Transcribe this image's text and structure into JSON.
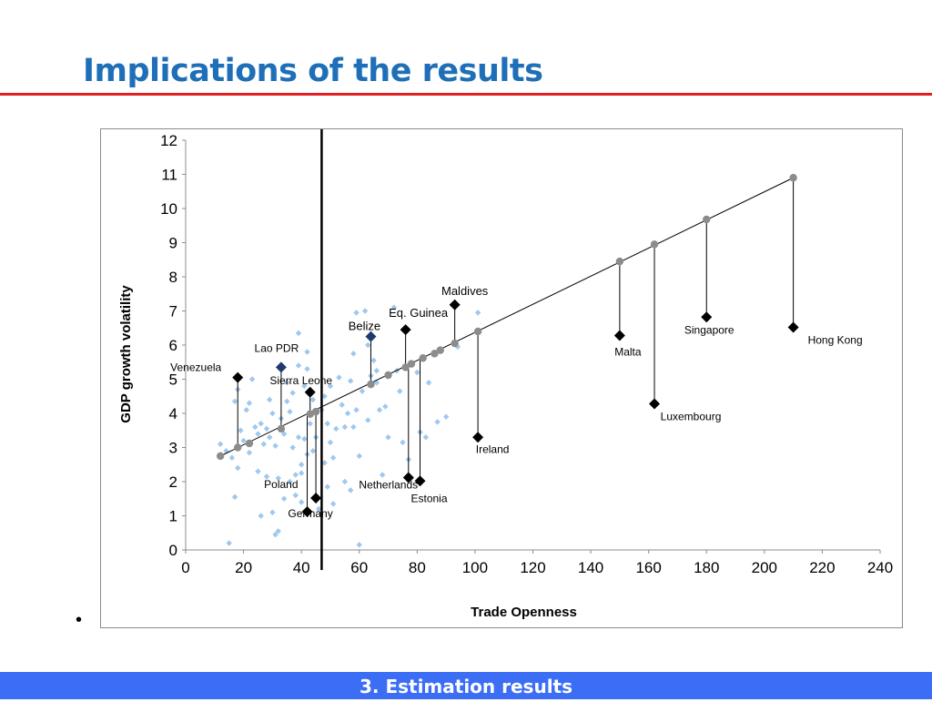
{
  "slide": {
    "title": "Implications of the results",
    "footer": "3. Estimation results",
    "bullet": "•"
  },
  "chart_data": {
    "type": "scatter",
    "title": "",
    "xlabel": "Trade Openness",
    "ylabel": "GDP growth volatility",
    "xlim": [
      0,
      240
    ],
    "ylim": [
      0,
      12
    ],
    "xticks": [
      0,
      20,
      40,
      60,
      80,
      100,
      120,
      140,
      160,
      180,
      200,
      220,
      240
    ],
    "yticks": [
      0,
      1,
      2,
      3,
      4,
      5,
      6,
      7,
      8,
      9,
      10,
      11,
      12
    ],
    "grid": false,
    "legend": "none",
    "threshold_x": 47,
    "colors": {
      "cloud": "#9fc8ee",
      "fitted": "#8c8c8c",
      "highlight": "#000000",
      "highlight_blue": "#1f3a6e"
    },
    "fitted_line": {
      "x": [
        12,
        210
      ],
      "y": [
        2.75,
        10.9
      ]
    },
    "fitted_points": [
      {
        "x": 12,
        "y": 2.75
      },
      {
        "x": 18,
        "y": 3.0
      },
      {
        "x": 22,
        "y": 3.12
      },
      {
        "x": 33,
        "y": 3.55
      },
      {
        "x": 43,
        "y": 3.98
      },
      {
        "x": 45,
        "y": 4.05
      },
      {
        "x": 64,
        "y": 4.85
      },
      {
        "x": 70,
        "y": 5.12
      },
      {
        "x": 76,
        "y": 5.35
      },
      {
        "x": 78,
        "y": 5.45
      },
      {
        "x": 82,
        "y": 5.62
      },
      {
        "x": 86,
        "y": 5.75
      },
      {
        "x": 88,
        "y": 5.85
      },
      {
        "x": 93,
        "y": 6.05
      },
      {
        "x": 101,
        "y": 6.4
      },
      {
        "x": 150,
        "y": 8.45
      },
      {
        "x": 162,
        "y": 8.95
      },
      {
        "x": 180,
        "y": 9.68
      },
      {
        "x": 210,
        "y": 10.9
      }
    ],
    "cloud_points": [
      {
        "x": 12,
        "y": 3.1
      },
      {
        "x": 14,
        "y": 2.9
      },
      {
        "x": 15,
        "y": 0.2
      },
      {
        "x": 16,
        "y": 2.7
      },
      {
        "x": 17,
        "y": 1.55
      },
      {
        "x": 17,
        "y": 4.35
      },
      {
        "x": 18,
        "y": 4.7
      },
      {
        "x": 18,
        "y": 2.4
      },
      {
        "x": 19,
        "y": 3.5
      },
      {
        "x": 20,
        "y": 3.2
      },
      {
        "x": 21,
        "y": 4.1
      },
      {
        "x": 22,
        "y": 4.3
      },
      {
        "x": 22,
        "y": 2.85
      },
      {
        "x": 23,
        "y": 5.0
      },
      {
        "x": 24,
        "y": 3.6
      },
      {
        "x": 25,
        "y": 2.3
      },
      {
        "x": 25,
        "y": 3.4
      },
      {
        "x": 26,
        "y": 1.0
      },
      {
        "x": 26,
        "y": 3.7
      },
      {
        "x": 27,
        "y": 3.1
      },
      {
        "x": 28,
        "y": 3.55
      },
      {
        "x": 28,
        "y": 2.15
      },
      {
        "x": 29,
        "y": 4.4
      },
      {
        "x": 29,
        "y": 3.3
      },
      {
        "x": 30,
        "y": 4.0
      },
      {
        "x": 30,
        "y": 1.1
      },
      {
        "x": 31,
        "y": 0.45
      },
      {
        "x": 31,
        "y": 3.05
      },
      {
        "x": 32,
        "y": 0.55
      },
      {
        "x": 32,
        "y": 2.1
      },
      {
        "x": 33,
        "y": 3.85
      },
      {
        "x": 34,
        "y": 1.5
      },
      {
        "x": 34,
        "y": 3.4
      },
      {
        "x": 35,
        "y": 4.9
      },
      {
        "x": 35,
        "y": 4.35
      },
      {
        "x": 36,
        "y": 2.0
      },
      {
        "x": 36,
        "y": 4.05
      },
      {
        "x": 37,
        "y": 3.0
      },
      {
        "x": 37,
        "y": 4.6
      },
      {
        "x": 38,
        "y": 1.6
      },
      {
        "x": 38,
        "y": 2.2
      },
      {
        "x": 39,
        "y": 6.35
      },
      {
        "x": 39,
        "y": 5.4
      },
      {
        "x": 39,
        "y": 3.3
      },
      {
        "x": 40,
        "y": 1.4
      },
      {
        "x": 40,
        "y": 2.25
      },
      {
        "x": 40,
        "y": 2.5
      },
      {
        "x": 41,
        "y": 4.8
      },
      {
        "x": 41,
        "y": 3.25
      },
      {
        "x": 42,
        "y": 5.8
      },
      {
        "x": 42,
        "y": 5.3
      },
      {
        "x": 42,
        "y": 2.8
      },
      {
        "x": 43,
        "y": 3.7
      },
      {
        "x": 44,
        "y": 2.9
      },
      {
        "x": 44,
        "y": 4.4
      },
      {
        "x": 45,
        "y": 3.3
      },
      {
        "x": 46,
        "y": 1.2
      },
      {
        "x": 47,
        "y": 4.1
      },
      {
        "x": 48,
        "y": 2.55
      },
      {
        "x": 48,
        "y": 4.5
      },
      {
        "x": 49,
        "y": 3.7
      },
      {
        "x": 49,
        "y": 1.85
      },
      {
        "x": 50,
        "y": 3.15
      },
      {
        "x": 50,
        "y": 4.8
      },
      {
        "x": 51,
        "y": 2.7
      },
      {
        "x": 51,
        "y": 1.35
      },
      {
        "x": 52,
        "y": 3.55
      },
      {
        "x": 53,
        "y": 5.05
      },
      {
        "x": 54,
        "y": 4.25
      },
      {
        "x": 55,
        "y": 2.0
      },
      {
        "x": 55,
        "y": 3.6
      },
      {
        "x": 56,
        "y": 4.0
      },
      {
        "x": 57,
        "y": 4.95
      },
      {
        "x": 57,
        "y": 1.75
      },
      {
        "x": 58,
        "y": 3.6
      },
      {
        "x": 58,
        "y": 5.75
      },
      {
        "x": 59,
        "y": 6.95
      },
      {
        "x": 59,
        "y": 4.1
      },
      {
        "x": 60,
        "y": 2.75
      },
      {
        "x": 60,
        "y": 0.15
      },
      {
        "x": 61,
        "y": 4.65
      },
      {
        "x": 62,
        "y": 7.0
      },
      {
        "x": 63,
        "y": 3.8
      },
      {
        "x": 63,
        "y": 6.0
      },
      {
        "x": 64,
        "y": 5.1
      },
      {
        "x": 65,
        "y": 5.55
      },
      {
        "x": 66,
        "y": 5.25
      },
      {
        "x": 66,
        "y": 4.9
      },
      {
        "x": 67,
        "y": 4.1
      },
      {
        "x": 68,
        "y": 2.2
      },
      {
        "x": 69,
        "y": 4.2
      },
      {
        "x": 70,
        "y": 3.3
      },
      {
        "x": 72,
        "y": 7.1
      },
      {
        "x": 73,
        "y": 5.25
      },
      {
        "x": 74,
        "y": 4.65
      },
      {
        "x": 75,
        "y": 3.15
      },
      {
        "x": 77,
        "y": 2.65
      },
      {
        "x": 78,
        "y": 2.1
      },
      {
        "x": 80,
        "y": 5.2
      },
      {
        "x": 81,
        "y": 3.45
      },
      {
        "x": 83,
        "y": 3.3
      },
      {
        "x": 84,
        "y": 4.9
      },
      {
        "x": 87,
        "y": 3.75
      },
      {
        "x": 90,
        "y": 3.9
      },
      {
        "x": 94,
        "y": 5.95
      },
      {
        "x": 101,
        "y": 6.95
      }
    ],
    "highlighted": [
      {
        "name": "Venezuela",
        "x": 18,
        "y": 5.05,
        "fit_y": 3.0,
        "color": "#000000"
      },
      {
        "name": "Lao PDR",
        "x": 33,
        "y": 5.35,
        "fit_y": 3.55,
        "color": "#1f3a6e"
      },
      {
        "name": "Sierra Leone",
        "x": 43,
        "y": 4.62,
        "fit_y": 3.98,
        "color": "#000000"
      },
      {
        "name": "Poland",
        "x": 42,
        "y": 1.12,
        "fit_y": 3.98,
        "color": "#000000"
      },
      {
        "name": "Germany",
        "x": 45,
        "y": 1.52,
        "fit_y": 4.05,
        "color": "#000000"
      },
      {
        "name": "Belize",
        "x": 64,
        "y": 6.25,
        "fit_y": 4.85,
        "color": "#1f3a6e"
      },
      {
        "name": "Eq. Guinea",
        "x": 76,
        "y": 6.45,
        "fit_y": 5.35,
        "color": "#000000"
      },
      {
        "name": "Netherlands",
        "x": 77,
        "y": 2.12,
        "fit_y": 5.4,
        "color": "#000000"
      },
      {
        "name": "Estonia",
        "x": 81,
        "y": 2.02,
        "fit_y": 5.58,
        "color": "#000000"
      },
      {
        "name": "Maldives",
        "x": 93,
        "y": 7.18,
        "fit_y": 6.05,
        "color": "#000000"
      },
      {
        "name": "Ireland",
        "x": 101,
        "y": 3.3,
        "fit_y": 6.4,
        "color": "#000000"
      },
      {
        "name": "Malta",
        "x": 150,
        "y": 6.28,
        "fit_y": 8.45,
        "color": "#000000"
      },
      {
        "name": "Luxembourg",
        "x": 162,
        "y": 4.28,
        "fit_y": 8.95,
        "color": "#000000"
      },
      {
        "name": "Singapore",
        "x": 180,
        "y": 6.82,
        "fit_y": 9.68,
        "color": "#000000"
      },
      {
        "name": "Hong Kong",
        "x": 210,
        "y": 6.52,
        "fit_y": 10.9,
        "color": "#000000"
      }
    ]
  }
}
